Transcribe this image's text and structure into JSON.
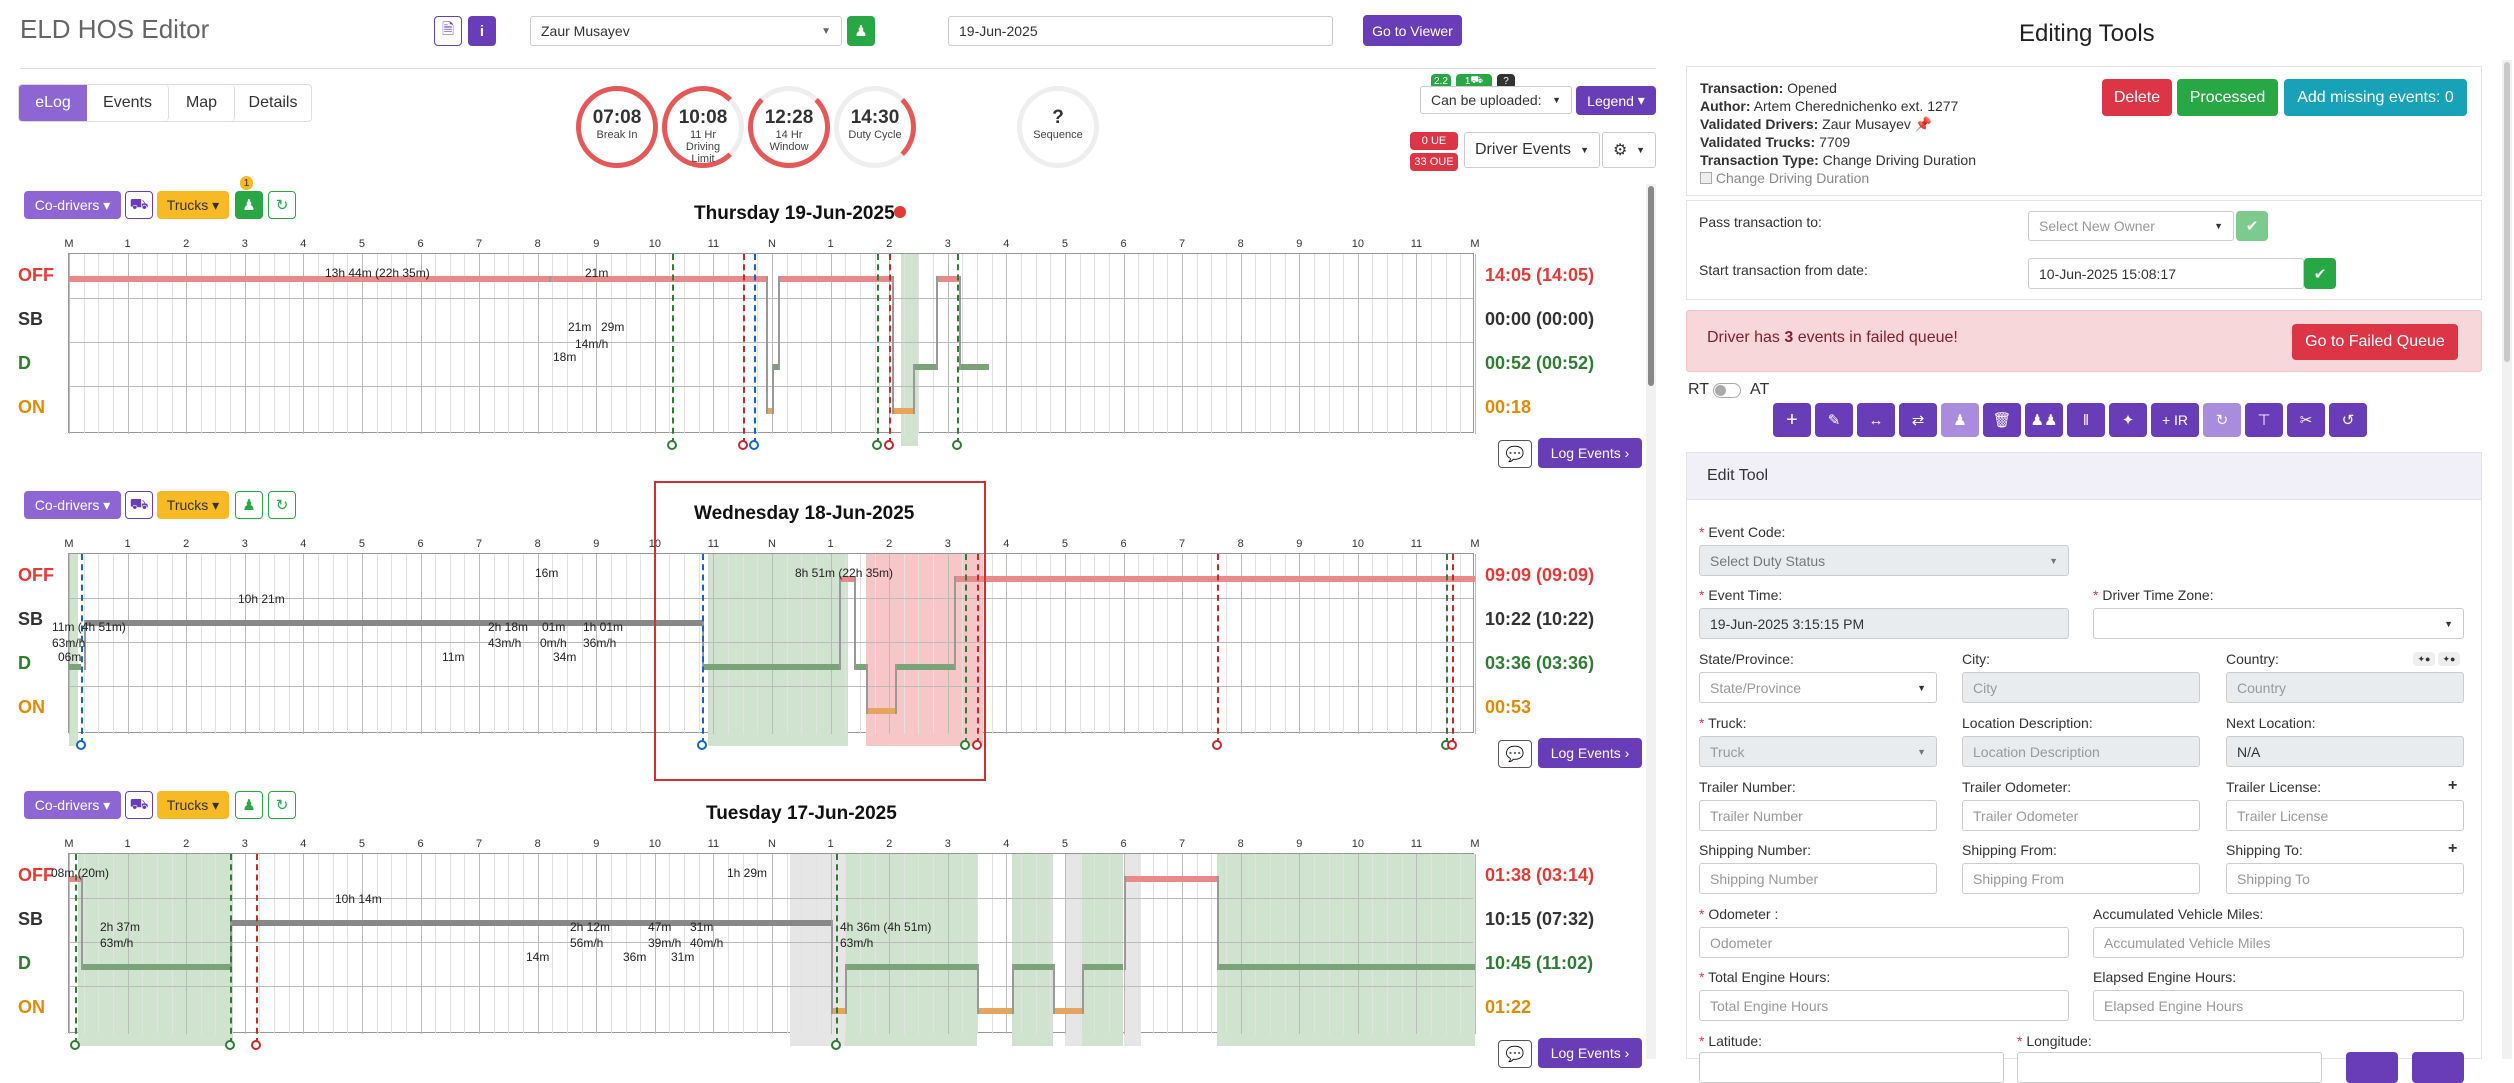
{
  "header": {
    "title": "ELD HOS Editor",
    "driver": "Zaur Musayev",
    "date": "19-Jun-2025",
    "go_viewer": "Go to Viewer"
  },
  "tabs": [
    "eLog",
    "Events",
    "Map",
    "Details"
  ],
  "gauges": [
    {
      "value": "07:08",
      "label": "Break In"
    },
    {
      "value": "10:08",
      "label": "11 Hr Driving Limit"
    },
    {
      "value": "12:28",
      "label": "14 Hr Window"
    },
    {
      "value": "14:30",
      "label": "Duty Cycle"
    },
    {
      "value": "?",
      "label": "Sequence"
    }
  ],
  "top_right": {
    "badge1": "2.2",
    "badge2": "1",
    "badge3": "?",
    "upload_select": "Can be uploaded:",
    "legend": "Legend",
    "ue": "0 UE",
    "oue": "33 OUE",
    "driver_events": "Driver Events"
  },
  "common": {
    "codrivers": "Co-drivers",
    "trucks": "Trucks",
    "log_events": "Log Events",
    "notice": "1"
  },
  "hours": [
    "M",
    "1",
    "2",
    "3",
    "4",
    "5",
    "6",
    "7",
    "8",
    "9",
    "10",
    "11",
    "N",
    "1",
    "2",
    "3",
    "4",
    "5",
    "6",
    "7",
    "8",
    "9",
    "10",
    "11",
    "M"
  ],
  "rows": [
    "OFF",
    "SB",
    "D",
    "ON"
  ],
  "days": [
    {
      "title": "Thursday 19-Jun-2025",
      "totals": [
        "14:05 (14:05)",
        "00:00 (00:00)",
        "00:52 (00:52)",
        "00:18"
      ],
      "labels": [
        [
          "13h 44m (22h 35m)",
          320,
          12
        ],
        [
          "21m",
          580,
          12
        ],
        [
          "21m",
          563,
          66
        ],
        [
          "29m",
          596,
          66
        ],
        [
          "14m/h",
          570,
          83
        ],
        [
          "18m",
          548,
          96
        ]
      ]
    },
    {
      "title": "Wednesday 18-Jun-2025",
      "totals": [
        "09:09 (09:09)",
        "10:22 (10:22)",
        "03:36 (03:36)",
        "00:53"
      ],
      "labels": [
        [
          "8h 51m (22h 35m)",
          790,
          12
        ],
        [
          "10h 21m",
          233,
          38
        ],
        [
          "16m",
          530,
          12
        ],
        [
          "11m (4h 51m)",
          47,
          66
        ],
        [
          "63m/h",
          47,
          82
        ],
        [
          "2h 18m",
          483,
          66
        ],
        [
          "43m/h",
          483,
          82
        ],
        [
          "01m",
          537,
          66
        ],
        [
          "0m/h",
          535,
          82
        ],
        [
          "1h 01m",
          578,
          66
        ],
        [
          "36m/h",
          578,
          82
        ],
        [
          "34m",
          548,
          96
        ],
        [
          "11m",
          437,
          96
        ],
        [
          "06m",
          53,
          96
        ]
      ]
    },
    {
      "title": "Tuesday 17-Jun-2025",
      "totals": [
        "01:38 (03:14)",
        "10:15 (07:32)",
        "10:45 (11:02)",
        "01:22"
      ],
      "labels": [
        [
          "08m (20m)",
          46,
          12
        ],
        [
          "1h 29m",
          722,
          12
        ],
        [
          "10h 14m",
          330,
          38
        ],
        [
          "2h 37m",
          95,
          66
        ],
        [
          "63m/h",
          95,
          82
        ],
        [
          "2h 12m",
          565,
          66
        ],
        [
          "56m/h",
          565,
          82
        ],
        [
          "47m",
          643,
          66
        ],
        [
          "39m/h",
          643,
          82
        ],
        [
          "31m",
          685,
          66
        ],
        [
          "40m/h",
          685,
          82
        ],
        [
          "4h 36m (4h 51m)",
          835,
          66
        ],
        [
          "63m/h",
          835,
          82
        ],
        [
          "14m",
          521,
          96
        ],
        [
          "36m",
          618,
          96
        ],
        [
          "31m",
          666,
          96
        ]
      ]
    }
  ],
  "panel": {
    "title": "Editing Tools",
    "transaction": "Opened",
    "author": "Artem Cherednichenko ext. 1277",
    "validated_drivers": "Zaur Musayev",
    "validated_trucks": "7709",
    "transaction_type": "Change Driving Duration",
    "change_chk": "Change Driving Duration",
    "delete": "Delete",
    "processed": "Processed",
    "add_missing": "Add missing events: 0",
    "pass_to": "Pass transaction to:",
    "select_owner": "Select New Owner",
    "start_from": "Start transaction from date:",
    "start_date": "10-Jun-2025 15:08:17",
    "failed_msg_pre": "Driver has ",
    "failed_count": "3",
    "failed_msg_post": " events in failed queue!",
    "failed_btn": "Go to Failed Queue",
    "rt": "RT",
    "at": "AT",
    "ir": "+ IR",
    "edit_tool": "Edit Tool",
    "f_event_code": "Event Code:",
    "p_event_code": "Select Duty Status",
    "f_event_time": "Event Time:",
    "v_event_time": "19-Jun-2025 3:15:15 PM",
    "f_tz": "Driver Time Zone:",
    "f_state": "State/Province:",
    "p_state": "State/Province",
    "f_city": "City:",
    "p_city": "City",
    "f_country": "Country:",
    "p_country": "Country",
    "f_truck": "Truck:",
    "p_truck": "Truck",
    "f_locdesc": "Location Description:",
    "p_locdesc": "Location Description",
    "f_nextloc": "Next Location:",
    "v_nextloc": "N/A",
    "f_trailer": "Trailer Number:",
    "p_trailer": "Trailer Number",
    "f_trodo": "Trailer Odometer:",
    "p_trodo": "Trailer Odometer",
    "f_trlic": "Trailer License:",
    "p_trlic": "Trailer License",
    "f_shipnum": "Shipping Number:",
    "p_shipnum": "Shipping Number",
    "f_shipfrom": "Shipping From:",
    "p_shipfrom": "Shipping From",
    "f_shipto": "Shipping To:",
    "p_shipto": "Shipping To",
    "f_odo": "Odometer :",
    "p_odo": "Odometer",
    "f_accmiles": "Accumulated Vehicle Miles:",
    "p_accmiles": "Accumulated Vehicle Miles",
    "f_teh": "Total Engine Hours:",
    "p_teh": "Total Engine Hours",
    "f_eeh": "Elapsed Engine Hours:",
    "p_eeh": "Elapsed Engine Hours",
    "f_lat": "Latitude:",
    "f_lon": "Longitude:"
  }
}
